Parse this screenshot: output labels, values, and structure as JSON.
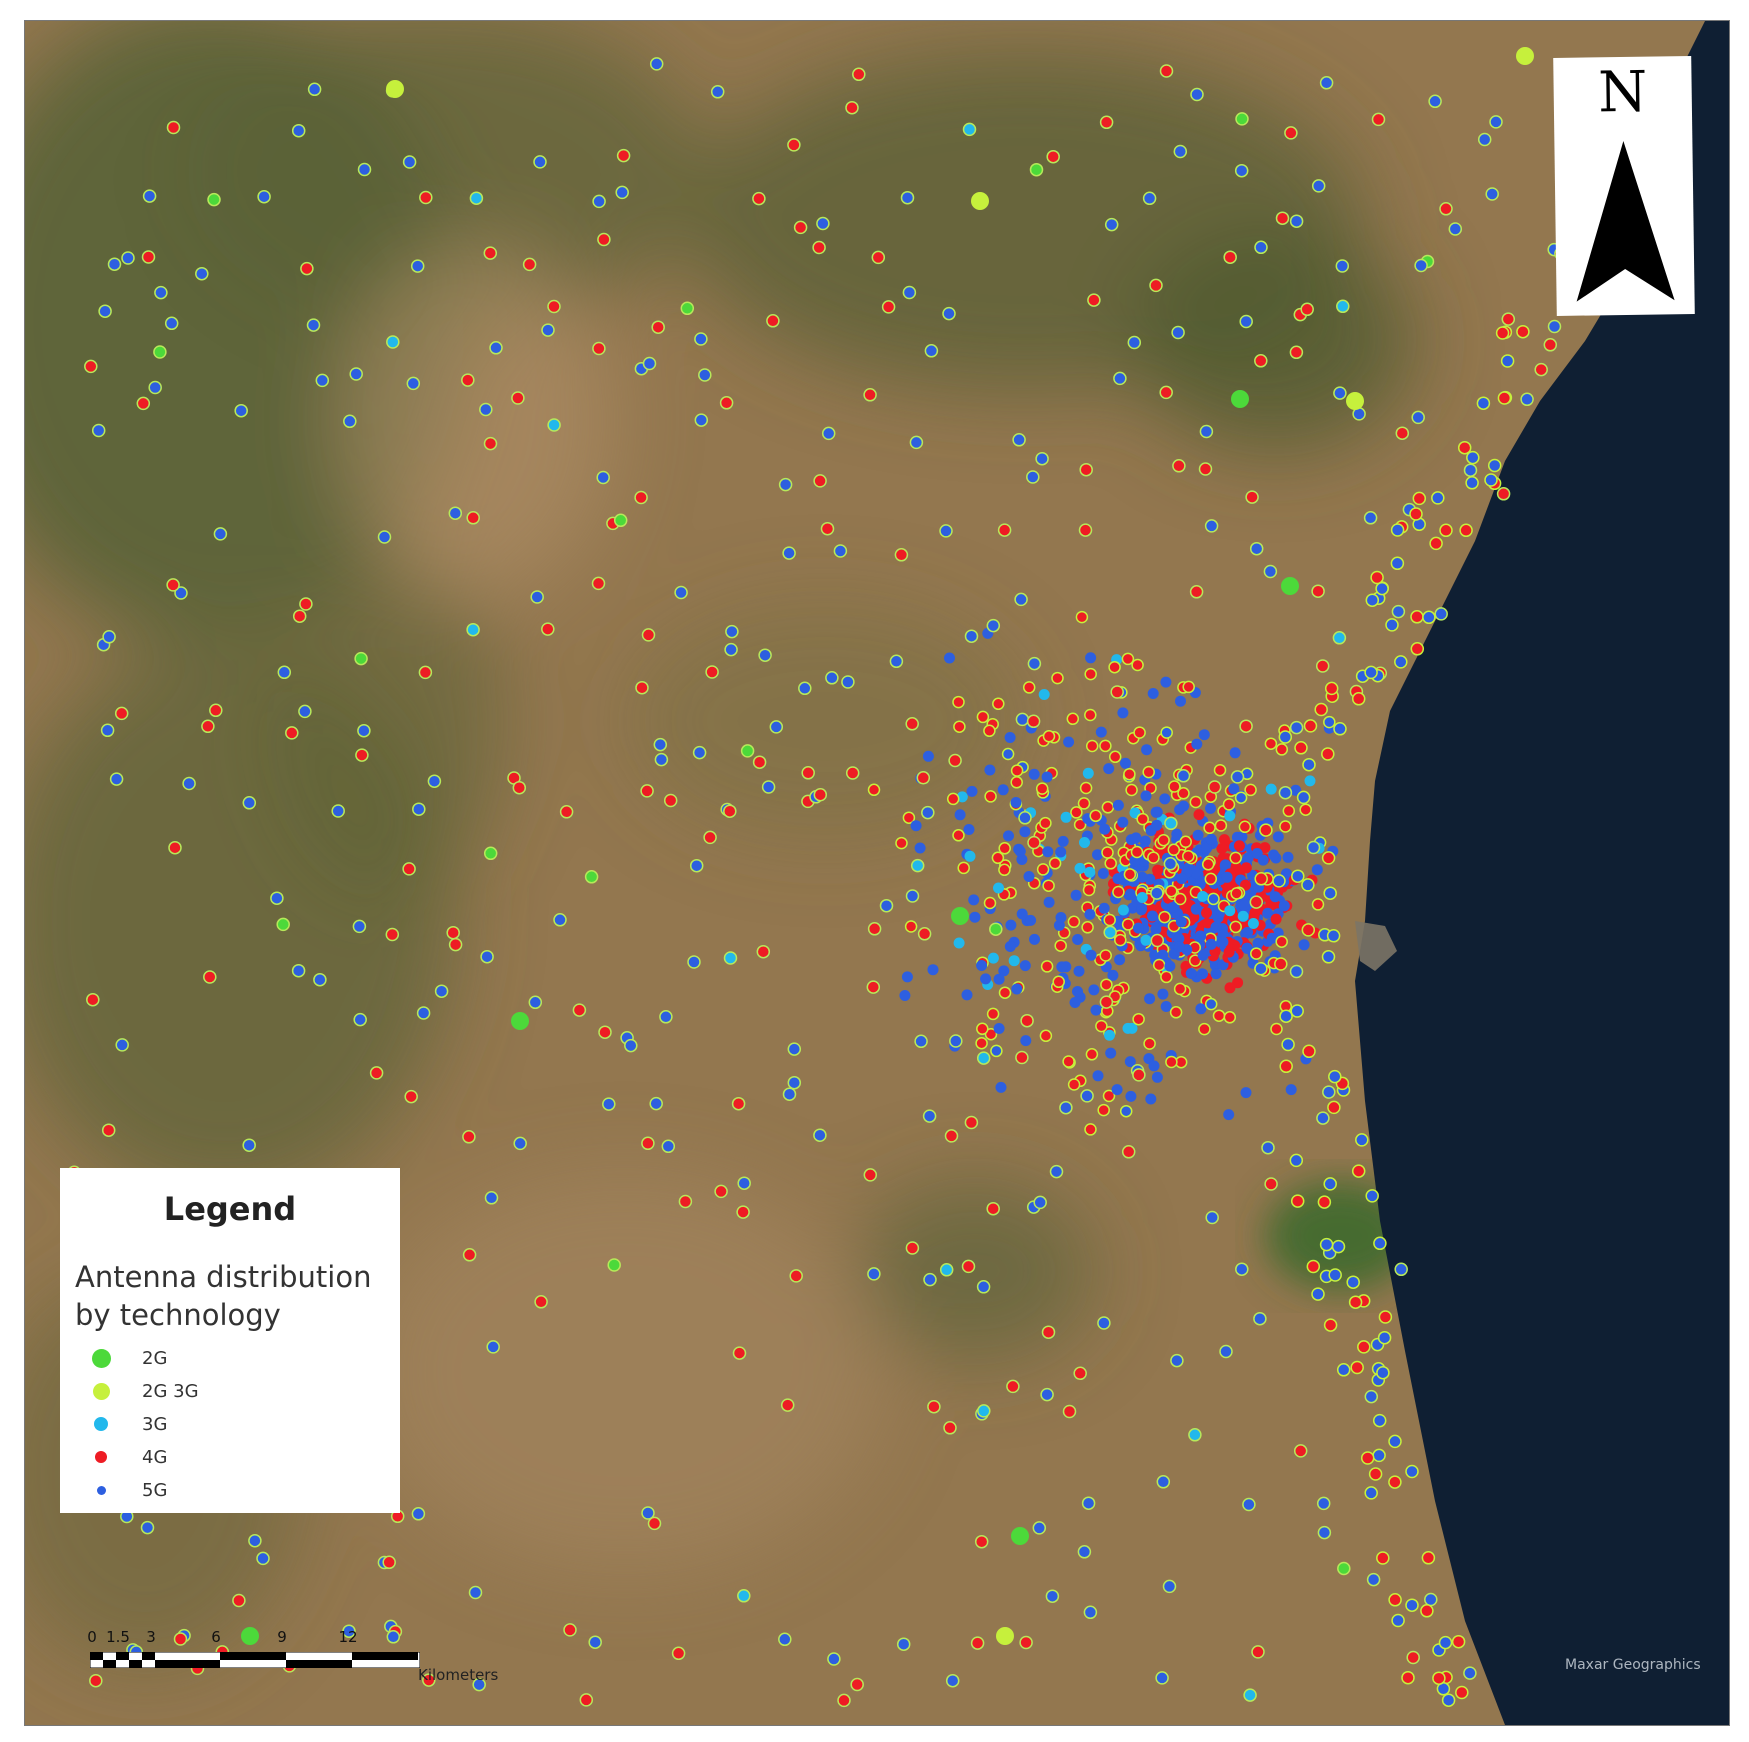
{
  "map": {
    "north_label": "N",
    "attribution": "Maxar Geographics",
    "colors": {
      "sea": "#0f1f33",
      "land": "#8f7450",
      "mountain": "#4f5a2e",
      "wetland": "#3e6a2c"
    }
  },
  "legend": {
    "title": "Legend",
    "subtitle": "Antenna distribution by technology",
    "items": [
      {
        "label": "2G",
        "color": "#4cd93a",
        "size": "large"
      },
      {
        "label": "2G 3G",
        "color": "#c6f03c",
        "size": "large"
      },
      {
        "label": "3G",
        "color": "#22b8ec",
        "size": "medium"
      },
      {
        "label": "4G",
        "color": "#ee1c24",
        "size": "medium"
      },
      {
        "label": "5G",
        "color": "#2d5fe0",
        "size": "small"
      }
    ]
  },
  "scalebar": {
    "tick_labels": [
      "0",
      "1.5",
      "3",
      "6",
      "9",
      "12"
    ],
    "units": "Kilometers"
  }
}
